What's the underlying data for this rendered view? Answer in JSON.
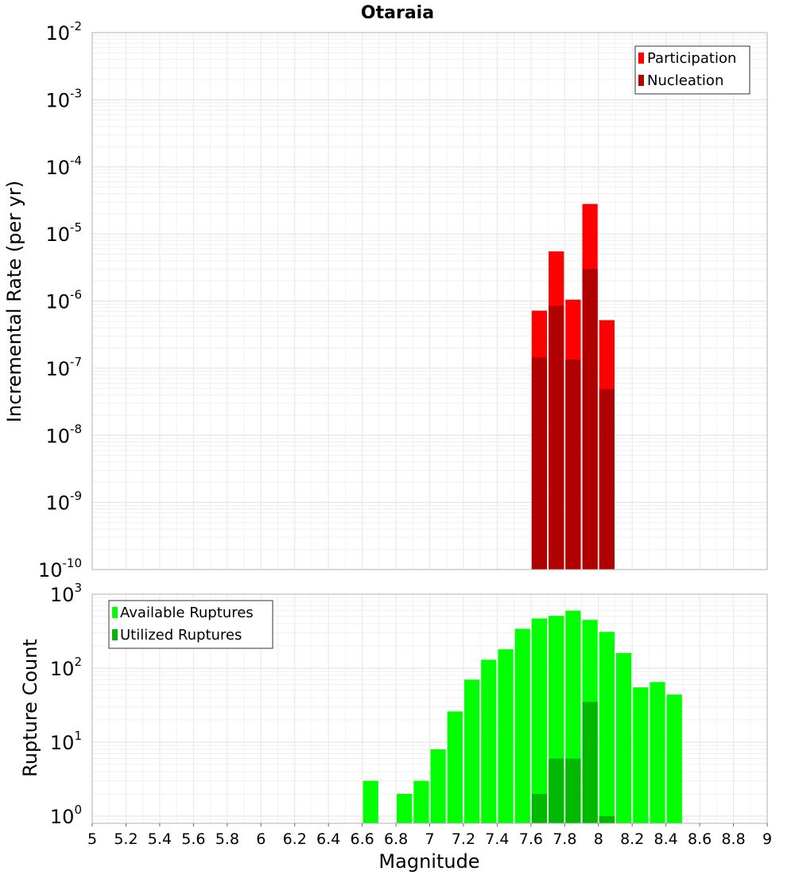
{
  "chart_data": [
    {
      "type": "bar",
      "title": "Otaraia",
      "xlabel": "",
      "ylabel": "Incremental Rate (per yr)",
      "yscale": "log",
      "ylim": [
        1e-10,
        0.01
      ],
      "xlim": [
        5,
        9
      ],
      "bin_width": 0.1,
      "legend_position": "top-right",
      "grid": true,
      "y_tick_labels": [
        {
          "base": "10",
          "exp": "-10"
        },
        {
          "base": "10",
          "exp": "-9"
        },
        {
          "base": "10",
          "exp": "-8"
        },
        {
          "base": "10",
          "exp": "-7"
        },
        {
          "base": "10",
          "exp": "-6"
        },
        {
          "base": "10",
          "exp": "-5"
        },
        {
          "base": "10",
          "exp": "-4"
        },
        {
          "base": "10",
          "exp": "-3"
        },
        {
          "base": "10",
          "exp": "-2"
        }
      ],
      "series": [
        {
          "name": "Participation",
          "color": "#ff0000",
          "x": [
            7.65,
            7.75,
            7.85,
            7.95,
            8.05
          ],
          "values": [
            7.2e-07,
            5.5e-06,
            1.05e-06,
            2.8e-05,
            5.2e-07
          ]
        },
        {
          "name": "Nucleation",
          "color": "#b00000",
          "x": [
            7.65,
            7.75,
            7.85,
            7.95,
            8.05
          ],
          "values": [
            1.45e-07,
            8.5e-07,
            1.35e-07,
            3e-06,
            4.9e-08
          ]
        }
      ]
    },
    {
      "type": "bar",
      "title": "",
      "xlabel": "Magnitude",
      "ylabel": "Rupture Count",
      "yscale": "log",
      "ylim": [
        0.8,
        1000
      ],
      "xlim": [
        5,
        9
      ],
      "bin_width": 0.1,
      "legend_position": "top-left",
      "grid": true,
      "x_tick_labels": [
        "5",
        "5.2",
        "5.4",
        "5.6",
        "5.8",
        "6",
        "6.2",
        "6.4",
        "6.6",
        "6.8",
        "7",
        "7.2",
        "7.4",
        "7.6",
        "7.8",
        "8",
        "8.2",
        "8.4",
        "8.6",
        "8.8",
        "9"
      ],
      "y_tick_labels": [
        {
          "base": "10",
          "exp": "0"
        },
        {
          "base": "10",
          "exp": "1"
        },
        {
          "base": "10",
          "exp": "2"
        },
        {
          "base": "10",
          "exp": "3"
        }
      ],
      "series": [
        {
          "name": "Available Ruptures",
          "color": "#00ff00",
          "x": [
            6.65,
            6.85,
            6.95,
            7.05,
            7.15,
            7.25,
            7.35,
            7.45,
            7.55,
            7.65,
            7.75,
            7.85,
            7.95,
            8.05,
            8.15,
            8.25,
            8.35,
            8.45
          ],
          "values": [
            3,
            2,
            3,
            8,
            26,
            70,
            130,
            180,
            340,
            470,
            510,
            600,
            450,
            310,
            160,
            55,
            65,
            44
          ]
        },
        {
          "name": "Utilized Ruptures",
          "color": "#00b800",
          "x": [
            7.65,
            7.75,
            7.85,
            7.95,
            8.05
          ],
          "values": [
            2,
            6,
            6,
            35,
            1
          ]
        }
      ]
    }
  ]
}
